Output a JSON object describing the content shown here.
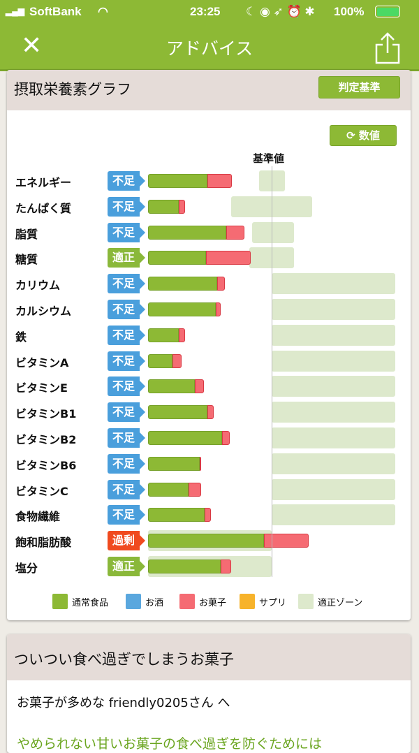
{
  "status": {
    "carrier": "SoftBank",
    "time": "23:25",
    "battery": "100%"
  },
  "nav": {
    "title": "アドバイス",
    "close_icon": "close-icon",
    "share_icon": "share-icon"
  },
  "graph_card": {
    "title": "摂取栄養素グラフ",
    "criteria_button": "判定基準",
    "toggle_button": "数値",
    "reference_label": "基準値"
  },
  "colors": {
    "normal": "#8db935",
    "alcohol": "#5aa7de",
    "snacks": "#f56b73",
    "supplement": "#f7b32b",
    "zone": "#dde9cc",
    "shortage": "#4a9fdc",
    "adequate": "#8ab83a",
    "excess": "#f04a1f"
  },
  "chart_data": {
    "type": "bar",
    "orientation": "horizontal-stacked",
    "unit_note": "",
    "reference_value": 100,
    "xlim": [
      0,
      200
    ],
    "legend": [
      {
        "name": "通常食品",
        "color": "#8db935"
      },
      {
        "name": "お酒",
        "color": "#5aa7de"
      },
      {
        "name": "お菓子",
        "color": "#f56b73"
      },
      {
        "name": "サプリ",
        "color": "#f7b32b"
      },
      {
        "name": "適正ゾーン",
        "color": "#dde9cc"
      }
    ],
    "rows": [
      {
        "label": "エネルギー",
        "status": "不足",
        "normal": 48,
        "snacks": 20,
        "zone": [
          90,
          111
        ]
      },
      {
        "label": "たんぱく質",
        "status": "不足",
        "normal": 25,
        "snacks": 5,
        "zone": [
          67,
          133
        ]
      },
      {
        "label": "脂質",
        "status": "不足",
        "normal": 63,
        "snacks": 15,
        "zone": [
          84,
          118
        ]
      },
      {
        "label": "糖質",
        "status": "適正",
        "normal": 47,
        "snacks": 36,
        "zone": [
          82,
          118
        ]
      },
      {
        "label": "カリウム",
        "status": "不足",
        "normal": 56,
        "snacks": 6,
        "zone": [
          100,
          200
        ]
      },
      {
        "label": "カルシウム",
        "status": "不足",
        "normal": 55,
        "snacks": 4,
        "zone": [
          100,
          200
        ]
      },
      {
        "label": "鉄",
        "status": "不足",
        "normal": 25,
        "snacks": 5,
        "zone": [
          100,
          200
        ]
      },
      {
        "label": "ビタミンA",
        "status": "不足",
        "normal": 20,
        "snacks": 7,
        "zone": [
          100,
          200
        ]
      },
      {
        "label": "ビタミンE",
        "status": "不足",
        "normal": 38,
        "snacks": 7,
        "zone": [
          100,
          200
        ]
      },
      {
        "label": "ビタミンB1",
        "status": "不足",
        "normal": 48,
        "snacks": 5,
        "zone": [
          100,
          200
        ]
      },
      {
        "label": "ビタミンB2",
        "status": "不足",
        "normal": 60,
        "snacks": 6,
        "zone": [
          100,
          200
        ]
      },
      {
        "label": "ビタミンB6",
        "status": "不足",
        "normal": 42,
        "snacks": 1,
        "zone": [
          100,
          200
        ]
      },
      {
        "label": "ビタミンC",
        "status": "不足",
        "normal": 33,
        "snacks": 10,
        "zone": [
          100,
          200
        ]
      },
      {
        "label": "食物繊維",
        "status": "不足",
        "normal": 46,
        "snacks": 5,
        "zone": [
          100,
          200
        ]
      },
      {
        "label": "飽和脂肪酸",
        "status": "過剰",
        "normal": 94,
        "snacks": 36,
        "zone": [
          0,
          100
        ]
      },
      {
        "label": "塩分",
        "status": "適正",
        "normal": 59,
        "snacks": 8,
        "zone": [
          0,
          100
        ]
      }
    ]
  },
  "advice_card": {
    "title": "ついつい食べ過ぎでしまうお菓子",
    "greeting": "お菓子が多めな friendly0205さん へ",
    "lead": "やめられない甘いお菓子の食べ過ぎを防ぐためには"
  }
}
